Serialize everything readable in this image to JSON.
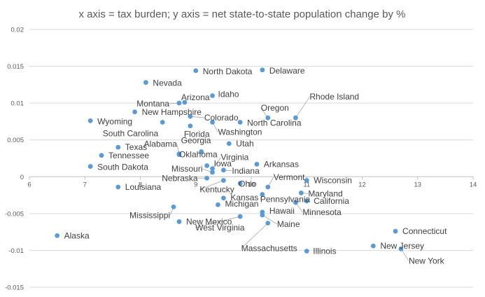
{
  "chart_data": {
    "type": "scatter",
    "title": "x axis = tax burden; y axis = net state-to-state population change by %",
    "xlabel": "",
    "ylabel": "",
    "xlim": [
      6,
      14
    ],
    "ylim": [
      -0.015,
      0.02
    ],
    "x_ticks": [
      6,
      7,
      8,
      9,
      10,
      11,
      12,
      13,
      14
    ],
    "x_tick_labels": [
      "6",
      "7",
      "8",
      "9",
      "10",
      "11",
      "12",
      "13",
      "14"
    ],
    "y_ticks": [
      0.02,
      0.015,
      0.01,
      0.005,
      0,
      -0.005,
      -0.01,
      -0.015
    ],
    "y_tick_labels": [
      "0.02",
      "0.015",
      "0.01",
      "0.005",
      "0",
      "-0.005",
      "-0.01",
      "-0.015"
    ],
    "grid": "horizontal",
    "marker_color": "#5b9bd5",
    "points": [
      {
        "label": "North Dakota",
        "x": 9.0,
        "y": 0.0144
      },
      {
        "label": "Delaware",
        "x": 10.2,
        "y": 0.0145
      },
      {
        "label": "Nevada",
        "x": 8.1,
        "y": 0.0128
      },
      {
        "label": "Idaho",
        "x": 9.3,
        "y": 0.011
      },
      {
        "label": "Montana",
        "x": 8.7,
        "y": 0.01
      },
      {
        "label": "Arizona",
        "x": 8.8,
        "y": 0.0101
      },
      {
        "label": "Oregon",
        "x": 10.3,
        "y": 0.008
      },
      {
        "label": "Rhode Island",
        "x": 10.8,
        "y": 0.008
      },
      {
        "label": "New Hampshire",
        "x": 7.9,
        "y": 0.0088
      },
      {
        "label": "Colorado",
        "x": 8.9,
        "y": 0.0082
      },
      {
        "label": "Wyoming",
        "x": 7.1,
        "y": 0.0076
      },
      {
        "label": "South Carolina",
        "x": 8.4,
        "y": 0.0074
      },
      {
        "label": "Washington",
        "x": 9.3,
        "y": 0.0074
      },
      {
        "label": "North Carolina",
        "x": 9.8,
        "y": 0.0074
      },
      {
        "label": "Florida",
        "x": 8.9,
        "y": 0.0069
      },
      {
        "label": "Alabama",
        "x": 8.7,
        "y": 0.0031
      },
      {
        "label": "Georgia",
        "x": 9.1,
        "y": 0.0034
      },
      {
        "label": "Utah",
        "x": 9.6,
        "y": 0.0045
      },
      {
        "label": "Texas",
        "x": 7.6,
        "y": 0.004
      },
      {
        "label": "Tennessee",
        "x": 7.3,
        "y": 0.0029
      },
      {
        "label": "Oklahoma",
        "x": 8.7,
        "y": 0.003
      },
      {
        "label": "Virginia",
        "x": 9.3,
        "y": 0.0011
      },
      {
        "label": "South Dakota",
        "x": 7.1,
        "y": 0.0014
      },
      {
        "label": "Arkansas",
        "x": 10.1,
        "y": 0.0017
      },
      {
        "label": "Iowa",
        "x": 9.2,
        "y": 0.0015
      },
      {
        "label": "Missouri",
        "x": 9.3,
        "y": 0.0006
      },
      {
        "label": "Indiana",
        "x": 9.5,
        "y": 0.0009
      },
      {
        "label": "Nebraska",
        "x": 9.2,
        "y": -0.0002
      },
      {
        "label": "Kentucky",
        "x": 9.5,
        "y": -0.0005
      },
      {
        "label": "Ohio",
        "x": 9.8,
        "y": -0.0009
      },
      {
        "label": "Vermont",
        "x": 10.3,
        "y": -0.0014
      },
      {
        "label": "Wisconsin",
        "x": 11.0,
        "y": -0.0005
      },
      {
        "label": "Louisiana",
        "x": 7.6,
        "y": -0.0014
      },
      {
        "label": "Maryland",
        "x": 10.9,
        "y": -0.0022
      },
      {
        "label": "Pennsylvania",
        "x": 10.2,
        "y": -0.0024
      },
      {
        "label": "California",
        "x": 11.0,
        "y": -0.0033
      },
      {
        "label": "Kansas",
        "x": 9.5,
        "y": -0.0029
      },
      {
        "label": "Michigan",
        "x": 9.4,
        "y": -0.0038
      },
      {
        "label": "Minnesota",
        "x": 10.8,
        "y": -0.0035
      },
      {
        "label": "Mississippi",
        "x": 8.6,
        "y": -0.0041
      },
      {
        "label": "Hawaii",
        "x": 10.2,
        "y": -0.0048
      },
      {
        "label": "Maine",
        "x": 10.2,
        "y": -0.0052
      },
      {
        "label": "New Mexico",
        "x": 8.7,
        "y": -0.0061
      },
      {
        "label": "West Virginia",
        "x": 9.8,
        "y": -0.0054
      },
      {
        "label": "Massachusetts",
        "x": 10.3,
        "y": -0.0063
      },
      {
        "label": "Connecticut",
        "x": 12.6,
        "y": -0.0074
      },
      {
        "label": "Alaska",
        "x": 6.5,
        "y": -0.008
      },
      {
        "label": "New Jersey",
        "x": 12.2,
        "y": -0.0094
      },
      {
        "label": "Illinois",
        "x": 11.0,
        "y": -0.0101
      },
      {
        "label": "New York",
        "x": 12.7,
        "y": -0.0098
      }
    ]
  }
}
